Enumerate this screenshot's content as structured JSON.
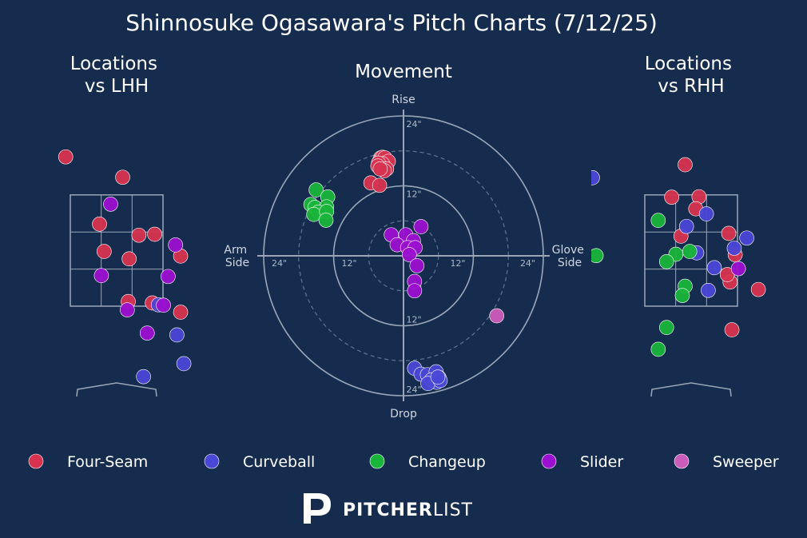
{
  "title": "Shinnosuke Ogasawara's Pitch Charts (7/12/25)",
  "brand": {
    "bold": "PITCHER",
    "light": "LIST"
  },
  "colors": {
    "background": "#162c4e",
    "Four-Seam": "#d7334f",
    "Curveball": "#4a47d6",
    "Changeup": "#19b53a",
    "Slider": "#9b0fd0",
    "Sweeper": "#cc5cbb"
  },
  "chart_data": [
    {
      "type": "scatter",
      "title": "Locations\nvs LHH",
      "title_lines": [
        "Locations",
        "vs LHH"
      ],
      "view": "catcher",
      "xlim": [
        -2.6,
        2.6
      ],
      "ylim": [
        -0.9,
        5.4
      ],
      "strike_zone": {
        "x": [
          -1.0,
          1.0
        ],
        "y": [
          1.5,
          3.9
        ]
      },
      "series": [
        {
          "name": "Four-Seam",
          "points": [
            [
              -1.1,
              4.72
            ],
            [
              0.13,
              4.28
            ],
            [
              -0.37,
              3.27
            ],
            [
              0.48,
              3.03
            ],
            [
              0.82,
              3.05
            ],
            [
              -0.27,
              2.68
            ],
            [
              0.27,
              2.52
            ],
            [
              1.38,
              2.58
            ],
            [
              0.25,
              1.6
            ],
            [
              0.77,
              1.57
            ],
            [
              1.38,
              1.37
            ]
          ]
        },
        {
          "name": "Curveball",
          "points": [
            [
              0.9,
              1.53
            ],
            [
              1.3,
              0.88
            ],
            [
              1.45,
              0.26
            ],
            [
              0.58,
              -0.02
            ]
          ]
        },
        {
          "name": "Changeup",
          "points": []
        },
        {
          "name": "Slider",
          "points": [
            [
              -0.13,
              3.7
            ],
            [
              1.27,
              2.82
            ],
            [
              1.11,
              2.14
            ],
            [
              -0.33,
              2.16
            ],
            [
              0.23,
              1.42
            ],
            [
              1.01,
              1.52
            ],
            [
              0.66,
              0.92
            ]
          ]
        },
        {
          "name": "Sweeper",
          "points": []
        }
      ]
    },
    {
      "type": "scatter",
      "title": "Movement",
      "axis_words": {
        "top": "Rise",
        "bottom": "Drop",
        "left": "Arm\nSide",
        "right": "Glove\nSide"
      },
      "axis_words_lines": {
        "left": [
          "Arm",
          "Side"
        ],
        "right": [
          "Glove",
          "Side"
        ]
      },
      "rings": [
        {
          "radius": 6,
          "style": "dashed"
        },
        {
          "radius": 12,
          "style": "solid",
          "label": "12\""
        },
        {
          "radius": 18,
          "style": "dashed"
        },
        {
          "radius": 24,
          "style": "solid",
          "label": "24\""
        }
      ],
      "units": "inches",
      "series": [
        {
          "name": "Four-Seam",
          "points": [
            [
              -3.9,
              16.8
            ],
            [
              -4.1,
              16.3
            ],
            [
              -3.6,
              16.9
            ],
            [
              -3.2,
              16.8
            ],
            [
              -2.6,
              16.2
            ],
            [
              -3.6,
              15.8
            ],
            [
              -4.3,
              15.9
            ],
            [
              -4.4,
              15.4
            ],
            [
              -2.9,
              14.9
            ],
            [
              -3.3,
              14.6
            ],
            [
              -4.0,
              14.9
            ],
            [
              -5.6,
              12.5
            ],
            [
              -4.1,
              12.1
            ]
          ]
        },
        {
          "name": "Curveball",
          "points": [
            [
              1.9,
              -19.3
            ],
            [
              3.0,
              -20.3
            ],
            [
              4.1,
              -20.4
            ],
            [
              5.6,
              -19.9
            ],
            [
              4.8,
              -21.3
            ],
            [
              6.1,
              -20.9
            ],
            [
              5.7,
              -21.7
            ],
            [
              4.2,
              -21.9
            ],
            [
              6.3,
              -21.4
            ],
            [
              5.9,
              -20.8
            ]
          ]
        },
        {
          "name": "Changeup",
          "points": [
            [
              -15.0,
              11.3
            ],
            [
              -13.0,
              10.1
            ],
            [
              -15.9,
              8.8
            ],
            [
              -15.2,
              8.3
            ],
            [
              -13.2,
              8.4
            ],
            [
              -14.6,
              7.5
            ],
            [
              -15.4,
              7.1
            ],
            [
              -13.2,
              7.6
            ],
            [
              -13.3,
              6.1
            ]
          ]
        },
        {
          "name": "Slider",
          "points": [
            [
              3.0,
              5.0
            ],
            [
              -2.1,
              3.6
            ],
            [
              0.4,
              3.6
            ],
            [
              1.7,
              2.6
            ],
            [
              -1.1,
              1.9
            ],
            [
              0.7,
              1.4
            ],
            [
              2.0,
              1.4
            ],
            [
              1.0,
              0.2
            ],
            [
              2.3,
              -1.7
            ],
            [
              1.9,
              -4.4
            ],
            [
              1.9,
              -6.0
            ]
          ]
        },
        {
          "name": "Sweeper",
          "points": [
            [
              16.0,
              -10.3
            ]
          ]
        }
      ]
    },
    {
      "type": "scatter",
      "title": "Locations\nvs RHH",
      "title_lines": [
        "Locations",
        "vs RHH"
      ],
      "view": "catcher",
      "xlim": [
        -2.6,
        2.6
      ],
      "ylim": [
        -0.9,
        5.4
      ],
      "strike_zone": {
        "x": [
          -1.0,
          1.0
        ],
        "y": [
          1.5,
          3.9
        ]
      },
      "series": [
        {
          "name": "Four-Seam",
          "points": [
            [
              -0.13,
              4.55
            ],
            [
              -0.42,
              3.85
            ],
            [
              0.17,
              3.86
            ],
            [
              0.1,
              3.6
            ],
            [
              -0.22,
              3.01
            ],
            [
              0.81,
              3.07
            ],
            [
              0.95,
              2.61
            ],
            [
              0.84,
              2.02
            ],
            [
              1.45,
              1.86
            ],
            [
              0.78,
              2.18
            ],
            [
              0.88,
              0.99
            ]
          ]
        },
        {
          "name": "Curveball",
          "points": [
            [
              -2.13,
              4.27
            ],
            [
              0.33,
              3.49
            ],
            [
              -0.1,
              3.22
            ],
            [
              1.2,
              2.97
            ],
            [
              0.12,
              2.65
            ],
            [
              0.5,
              2.33
            ],
            [
              0.93,
              2.75
            ],
            [
              0.37,
              1.84
            ],
            [
              2.2,
              1.5
            ]
          ]
        },
        {
          "name": "Changeup",
          "points": [
            [
              -0.71,
              3.35
            ],
            [
              -2.05,
              2.59
            ],
            [
              -0.33,
              2.62
            ],
            [
              -0.03,
              2.68
            ],
            [
              -0.53,
              2.46
            ],
            [
              -0.13,
              1.93
            ],
            [
              -0.19,
              1.73
            ],
            [
              -0.53,
              1.04
            ],
            [
              -0.71,
              0.57
            ]
          ]
        },
        {
          "name": "Slider",
          "points": [
            [
              1.02,
              2.31
            ]
          ]
        },
        {
          "name": "Sweeper",
          "points": []
        }
      ]
    }
  ],
  "legend": [
    "Four-Seam",
    "Curveball",
    "Changeup",
    "Slider",
    "Sweeper"
  ]
}
